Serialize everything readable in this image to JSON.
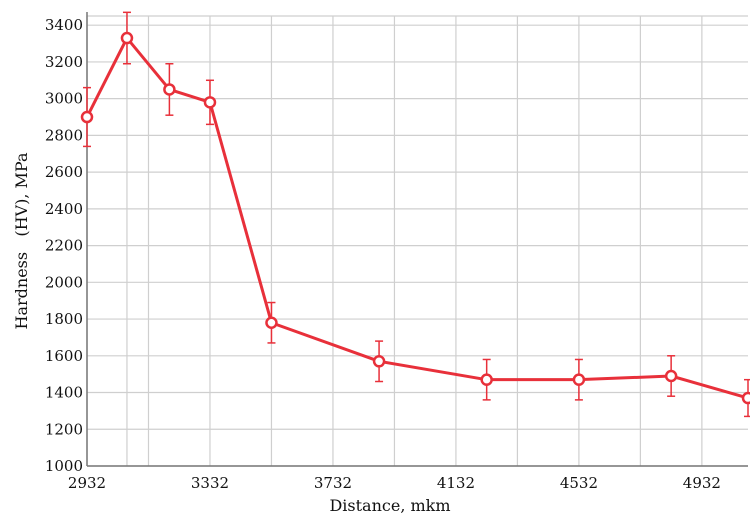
{
  "chart_data": {
    "type": "line",
    "title": "",
    "xlabel": "Distance, mkm",
    "ylabel": "Hardness   (HV), MPa",
    "xlim": [
      2932,
      5082
    ],
    "ylim": [
      1000,
      3450
    ],
    "xticks": [
      2932,
      3332,
      3732,
      4132,
      4532,
      4932
    ],
    "yticks": [
      1000,
      1200,
      1400,
      1600,
      1800,
      2000,
      2200,
      2400,
      2600,
      2800,
      3000,
      3200,
      3400
    ],
    "x_gridlines": [
      2932,
      3062,
      3132,
      3332,
      3532,
      3732,
      3932,
      4132,
      4332,
      4532,
      4732,
      4932
    ],
    "grid": true,
    "legend": "none",
    "colors": {
      "series": "#e8303a",
      "grid": "#cfcfcf",
      "axis": "#777777"
    },
    "series": [
      {
        "x": [
          2932,
          3062,
          3200,
          3332,
          3532,
          3882,
          4232,
          4532,
          4832,
          5082
        ],
        "values": [
          2900,
          3330,
          3050,
          2980,
          1780,
          1570,
          1470,
          1470,
          1490,
          1370
        ],
        "error": [
          160,
          140,
          140,
          120,
          110,
          110,
          110,
          110,
          110,
          100
        ]
      }
    ]
  }
}
